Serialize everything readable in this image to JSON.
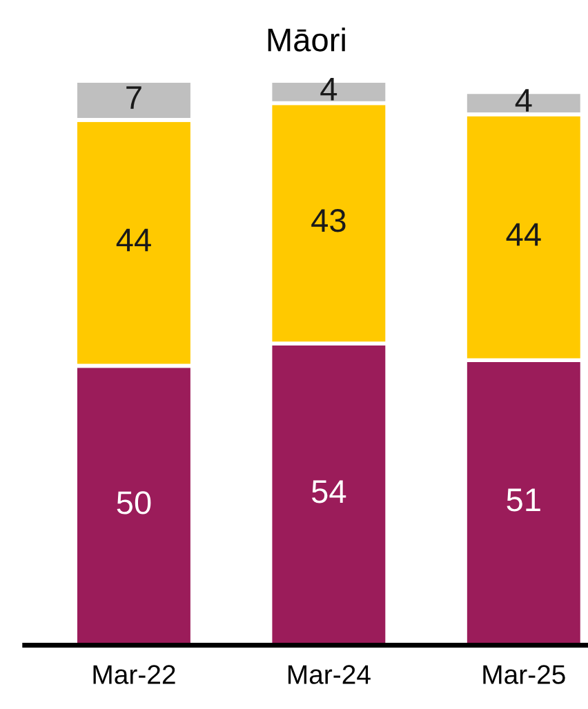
{
  "chart_data": {
    "type": "bar",
    "title": "Māori",
    "stacked": true,
    "data_labels": true,
    "grid": false,
    "legend": false,
    "categories": [
      "Mar-22",
      "Mar-24",
      "Mar-25"
    ],
    "series": [
      {
        "color": "#9b1c5a",
        "values": [
          50,
          54,
          51
        ]
      },
      {
        "color": "#ffc900",
        "values": [
          44,
          43,
          44
        ]
      },
      {
        "color": "#bfbfbf",
        "values": [
          7,
          4,
          4
        ]
      }
    ]
  }
}
